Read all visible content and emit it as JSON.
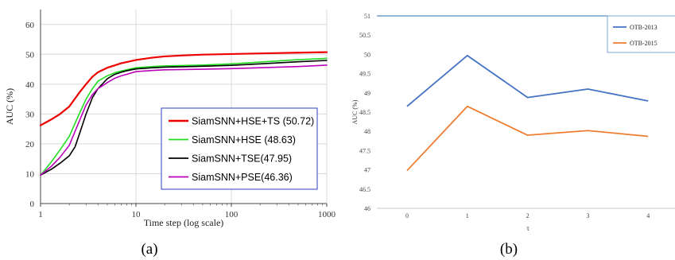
{
  "chart_data": [
    {
      "type": "line",
      "xscale": "log",
      "xlabel": "Time step (log scale)",
      "ylabel": "AUC (%)",
      "xlim": [
        1,
        1000
      ],
      "ylim": [
        0,
        65
      ],
      "xticks": [
        "1",
        "10",
        "100",
        "1000"
      ],
      "yticks": [
        "0",
        "10",
        "20",
        "30",
        "40",
        "50",
        "60"
      ],
      "grid": true,
      "legend_position": "bottom-right",
      "caption": "(a)",
      "series": [
        {
          "name": "SiamSNN+HSE+TS (50.72)",
          "color": "#ee0000",
          "points": [
            [
              1,
              26.2
            ],
            [
              1.3,
              28.2
            ],
            [
              1.6,
              30.0
            ],
            [
              2,
              32.5
            ],
            [
              2.5,
              36.8
            ],
            [
              3,
              40.0
            ],
            [
              3.5,
              42.5
            ],
            [
              4,
              44.0
            ],
            [
              5,
              45.5
            ],
            [
              6,
              46.3
            ],
            [
              7,
              47.0
            ],
            [
              8,
              47.4
            ],
            [
              10,
              48.1
            ],
            [
              15,
              48.9
            ],
            [
              20,
              49.3
            ],
            [
              30,
              49.6
            ],
            [
              50,
              49.9
            ],
            [
              100,
              50.1
            ],
            [
              200,
              50.3
            ],
            [
              500,
              50.55
            ],
            [
              1000,
              50.72
            ]
          ]
        },
        {
          "name": "SiamSNN+HSE (48.63)",
          "color": "#22dd22",
          "points": [
            [
              1,
              9.5
            ],
            [
              1.3,
              14.0
            ],
            [
              1.6,
              18.0
            ],
            [
              2,
              22.5
            ],
            [
              2.5,
              29.5
            ],
            [
              3,
              35.0
            ],
            [
              3.5,
              38.5
            ],
            [
              4,
              41.0
            ],
            [
              5,
              42.8
            ],
            [
              6,
              43.8
            ],
            [
              7,
              44.4
            ],
            [
              8,
              44.8
            ],
            [
              10,
              45.5
            ],
            [
              15,
              45.9
            ],
            [
              20,
              46.1
            ],
            [
              50,
              46.4
            ],
            [
              100,
              46.8
            ],
            [
              200,
              47.4
            ],
            [
              500,
              48.2
            ],
            [
              1000,
              48.63
            ]
          ]
        },
        {
          "name": "SiamSNN+TSE(47.95)",
          "color": "#000000",
          "points": [
            [
              1,
              9.5
            ],
            [
              1.3,
              11.5
            ],
            [
              1.6,
              13.5
            ],
            [
              2,
              16.0
            ],
            [
              2.3,
              19.0
            ],
            [
              2.6,
              24.0
            ],
            [
              3,
              30.0
            ],
            [
              3.5,
              35.5
            ],
            [
              4,
              38.5
            ],
            [
              5,
              41.8
            ],
            [
              6,
              43.3
            ],
            [
              7,
              44.0
            ],
            [
              8,
              44.5
            ],
            [
              10,
              45.1
            ],
            [
              15,
              45.5
            ],
            [
              20,
              45.7
            ],
            [
              50,
              46.0
            ],
            [
              100,
              46.3
            ],
            [
              200,
              46.8
            ],
            [
              500,
              47.5
            ],
            [
              1000,
              47.95
            ]
          ]
        },
        {
          "name": "SiamSNN+PSE(46.36)",
          "color": "#bb00bb",
          "points": [
            [
              1,
              9.5
            ],
            [
              1.3,
              12.5
            ],
            [
              1.6,
              15.5
            ],
            [
              2,
              19.5
            ],
            [
              2.5,
              27.0
            ],
            [
              3,
              33.0
            ],
            [
              3.5,
              36.5
            ],
            [
              4,
              38.5
            ],
            [
              5,
              40.5
            ],
            [
              6,
              42.0
            ],
            [
              7,
              42.8
            ],
            [
              8,
              43.3
            ],
            [
              10,
              44.2
            ],
            [
              15,
              44.6
            ],
            [
              20,
              44.8
            ],
            [
              50,
              45.0
            ],
            [
              100,
              45.2
            ],
            [
              200,
              45.5
            ],
            [
              500,
              45.9
            ],
            [
              1000,
              46.36
            ]
          ]
        }
      ]
    },
    {
      "type": "line",
      "xlabel": "τ",
      "ylabel": "AUC (%)",
      "categories": [
        "0",
        "1",
        "2",
        "3",
        "4"
      ],
      "ylim": [
        46,
        51
      ],
      "yticks": [
        "46",
        "46.5",
        "47",
        "47.5",
        "48",
        "48.5",
        "49",
        "49.5",
        "50",
        "50.5",
        "51"
      ],
      "grid": false,
      "legend_position": "top-right",
      "caption": "(b)",
      "series": [
        {
          "name": "OTB-2013",
          "color": "#4472c4",
          "values": [
            48.65,
            49.97,
            48.88,
            49.1,
            48.79
          ]
        },
        {
          "name": "OTB-2015",
          "color": "#ed7d31",
          "values": [
            46.98,
            48.65,
            47.9,
            48.02,
            47.87
          ]
        }
      ]
    }
  ]
}
